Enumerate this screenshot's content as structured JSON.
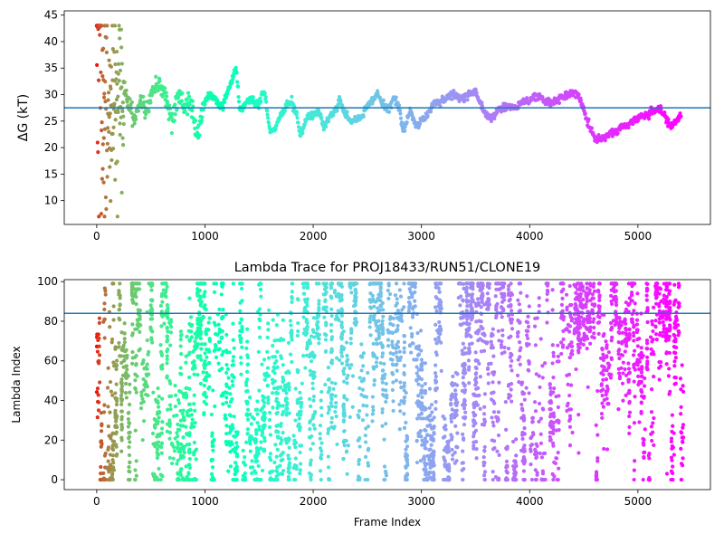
{
  "chart_data": [
    {
      "type": "scatter",
      "title": "",
      "xlabel": "",
      "ylabel": "ΔG (kT)",
      "xlim": [
        -300,
        5670
      ],
      "ylim": [
        5.5,
        45.8
      ],
      "xticks": [
        0,
        1000,
        2000,
        3000,
        4000,
        5000
      ],
      "yticks": [
        10,
        15,
        20,
        25,
        30,
        35,
        40,
        45
      ],
      "hline": 27.5,
      "colormap": "rainbow",
      "color_by": "frame index",
      "grid": false,
      "legend": "none",
      "colors": {
        "hline": "#1f77b4",
        "axes": "#000000",
        "background": "#ffffff"
      },
      "series": [
        {
          "trace": [
            [
              0,
              40
            ],
            [
              30,
              43
            ],
            [
              60,
              36
            ],
            [
              100,
              34
            ],
            [
              150,
              35
            ],
            [
              200,
              38
            ],
            [
              250,
              33
            ],
            [
              300,
              28
            ],
            [
              350,
              25
            ],
            [
              400,
              29
            ],
            [
              450,
              27
            ],
            [
              500,
              29
            ],
            [
              550,
              33
            ],
            [
              600,
              31
            ],
            [
              650,
              28
            ],
            [
              700,
              24
            ],
            [
              750,
              30
            ],
            [
              800,
              28
            ],
            [
              850,
              29
            ],
            [
              900,
              26
            ],
            [
              930,
              22
            ],
            [
              960,
              25
            ],
            [
              1000,
              29
            ],
            [
              1050,
              30
            ],
            [
              1100,
              29
            ],
            [
              1150,
              27.5
            ],
            [
              1200,
              30
            ],
            [
              1250,
              33
            ],
            [
              1290,
              34.8
            ],
            [
              1320,
              27
            ],
            [
              1350,
              27.5
            ],
            [
              1400,
              29
            ],
            [
              1450,
              29
            ],
            [
              1500,
              28
            ],
            [
              1550,
              31
            ],
            [
              1600,
              23
            ],
            [
              1650,
              23.5
            ],
            [
              1700,
              26
            ],
            [
              1750,
              28
            ],
            [
              1800,
              28.5
            ],
            [
              1850,
              26
            ],
            [
              1880,
              22
            ],
            [
              1950,
              26
            ],
            [
              2000,
              26
            ],
            [
              2050,
              27
            ],
            [
              2100,
              24
            ],
            [
              2150,
              25.5
            ],
            [
              2200,
              27
            ],
            [
              2250,
              29
            ],
            [
              2300,
              26
            ],
            [
              2350,
              25
            ],
            [
              2400,
              25
            ],
            [
              2450,
              26
            ],
            [
              2500,
              28
            ],
            [
              2550,
              29
            ],
            [
              2600,
              30
            ],
            [
              2650,
              28
            ],
            [
              2700,
              27
            ],
            [
              2750,
              29.5
            ],
            [
              2800,
              27
            ],
            [
              2830,
              23
            ],
            [
              2900,
              27
            ],
            [
              2950,
              24
            ],
            [
              3000,
              25
            ],
            [
              3050,
              26
            ],
            [
              3100,
              28
            ],
            [
              3150,
              28.5
            ],
            [
              3200,
              29
            ],
            [
              3250,
              30
            ],
            [
              3300,
              30
            ],
            [
              3350,
              29
            ],
            [
              3400,
              29.5
            ],
            [
              3450,
              30
            ],
            [
              3500,
              30.5
            ],
            [
              3550,
              28
            ],
            [
              3600,
              26
            ],
            [
              3650,
              25.5
            ],
            [
              3700,
              27
            ],
            [
              3750,
              27.5
            ],
            [
              3800,
              27.8
            ],
            [
              3850,
              27.5
            ],
            [
              3900,
              28
            ],
            [
              3950,
              28.5
            ],
            [
              4000,
              29
            ],
            [
              4050,
              29.5
            ],
            [
              4100,
              29.5
            ],
            [
              4150,
              28.5
            ],
            [
              4200,
              28.5
            ],
            [
              4250,
              29
            ],
            [
              4300,
              29.5
            ],
            [
              4350,
              30
            ],
            [
              4400,
              30.5
            ],
            [
              4450,
              30
            ],
            [
              4500,
              27
            ],
            [
              4550,
              24
            ],
            [
              4600,
              22
            ],
            [
              4650,
              21.5
            ],
            [
              4700,
              22
            ],
            [
              4750,
              23
            ],
            [
              4800,
              23
            ],
            [
              4850,
              24
            ],
            [
              4900,
              24
            ],
            [
              4950,
              25
            ],
            [
              5000,
              25.5
            ],
            [
              5050,
              26
            ],
            [
              5100,
              26.5
            ],
            [
              5150,
              27
            ],
            [
              5200,
              27.5
            ],
            [
              5250,
              26
            ],
            [
              5300,
              24
            ],
            [
              5350,
              25
            ],
            [
              5400,
              26
            ]
          ],
          "early_scatter": {
            "x_range": [
              0,
              250
            ],
            "y_range": [
              7,
              43
            ]
          }
        }
      ]
    },
    {
      "type": "scatter",
      "title": "Lambda Trace for PROJ18433/RUN51/CLONE19",
      "xlabel": "Frame Index",
      "ylabel": "Lambda Index",
      "xlim": [
        -300,
        5670
      ],
      "ylim": [
        -5,
        101
      ],
      "xticks": [
        0,
        1000,
        2000,
        3000,
        4000,
        5000
      ],
      "yticks": [
        0,
        20,
        40,
        60,
        80,
        100
      ],
      "hline": 84,
      "colormap": "rainbow",
      "color_by": "frame index",
      "grid": false,
      "legend": "none",
      "colors": {
        "hline": "#1f77b4",
        "axes": "#000000",
        "background": "#ffffff"
      },
      "series": [
        {
          "frame_range": [
            0,
            5400
          ],
          "value_range": [
            0,
            99
          ],
          "dense_high_windows": [
            [
              4400,
              4600
            ],
            [
              5200,
              5300
            ]
          ]
        }
      ]
    }
  ]
}
